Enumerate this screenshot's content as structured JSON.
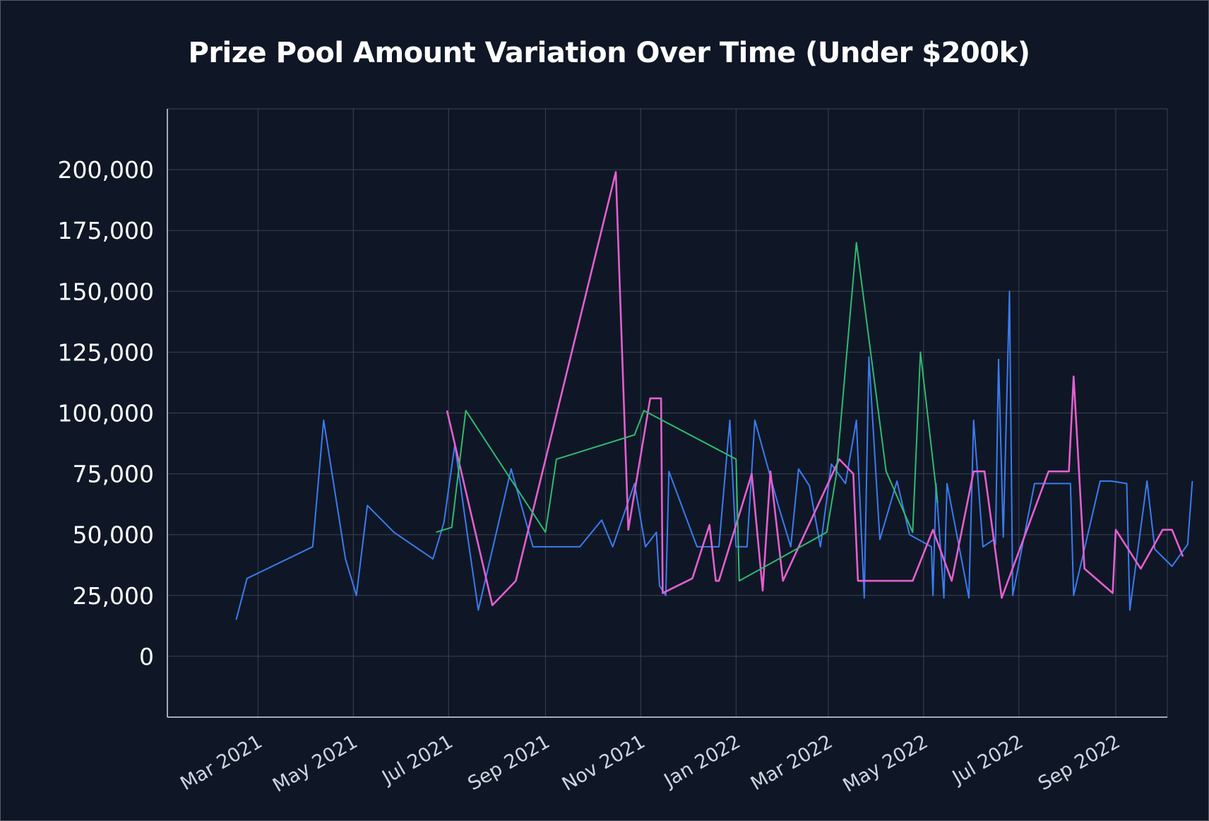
{
  "chart_data": {
    "type": "line",
    "title": "Prize Pool Amount Variation Over Time (Under $200k)",
    "xlabel": "",
    "ylabel": "",
    "x_range": [
      "2021-01-02",
      "2022-10-04"
    ],
    "ylim": [
      -25000,
      225000
    ],
    "y_ticks": [
      0,
      25000,
      50000,
      75000,
      100000,
      125000,
      150000,
      175000,
      200000
    ],
    "y_tick_labels": [
      "0",
      "25,000",
      "50,000",
      "75,000",
      "100,000",
      "125,000",
      "150,000",
      "175,000",
      "200,000"
    ],
    "x_ticks": [
      "2021-03-01",
      "2021-05-01",
      "2021-07-01",
      "2021-09-01",
      "2021-11-01",
      "2022-01-01",
      "2022-03-01",
      "2022-05-01",
      "2022-07-01",
      "2022-09-01"
    ],
    "x_tick_labels": [
      "Mar 2021",
      "May 2021",
      "Jul 2021",
      "Sep 2021",
      "Nov 2021",
      "Jan 2022",
      "Mar 2022",
      "May 2022",
      "Jul 2022",
      "Sep 2022"
    ],
    "grid": true,
    "legend": "none",
    "series": [
      {
        "color": "#3b7bf0",
        "points": [
          [
            "2021-02-15",
            15000
          ],
          [
            "2021-02-22",
            32000
          ],
          [
            "2021-04-05",
            45000
          ],
          [
            "2021-04-12",
            97000
          ],
          [
            "2021-04-26",
            40000
          ],
          [
            "2021-05-03",
            25000
          ],
          [
            "2021-05-10",
            62000
          ],
          [
            "2021-05-27",
            51000
          ],
          [
            "2021-06-21",
            40000
          ],
          [
            "2021-06-28",
            55000
          ],
          [
            "2021-07-05",
            87000
          ],
          [
            "2021-07-13",
            50000
          ],
          [
            "2021-07-20",
            19000
          ],
          [
            "2021-08-10",
            77000
          ],
          [
            "2021-08-24",
            45000
          ],
          [
            "2021-09-08",
            45000
          ],
          [
            "2021-09-23",
            45000
          ],
          [
            "2021-10-07",
            56000
          ],
          [
            "2021-10-14",
            45000
          ],
          [
            "2021-10-28",
            71000
          ],
          [
            "2021-11-04",
            45000
          ],
          [
            "2021-11-11",
            51000
          ],
          [
            "2021-11-13",
            29000
          ],
          [
            "2021-11-17",
            25000
          ],
          [
            "2021-11-19",
            76000
          ],
          [
            "2021-12-07",
            45000
          ],
          [
            "2021-12-21",
            45000
          ],
          [
            "2021-12-28",
            97000
          ],
          [
            "2022-01-01",
            45000
          ],
          [
            "2022-01-08",
            45000
          ],
          [
            "2022-01-13",
            97000
          ],
          [
            "2022-01-28",
            62000
          ],
          [
            "2022-02-05",
            45000
          ],
          [
            "2022-02-10",
            77000
          ],
          [
            "2022-02-17",
            70000
          ],
          [
            "2022-02-24",
            45000
          ],
          [
            "2022-03-03",
            79000
          ],
          [
            "2022-03-12",
            71000
          ],
          [
            "2022-03-19",
            97000
          ],
          [
            "2022-03-24",
            24000
          ],
          [
            "2022-03-27",
            123000
          ],
          [
            "2022-04-03",
            48000
          ],
          [
            "2022-04-14",
            72000
          ],
          [
            "2022-04-22",
            50000
          ],
          [
            "2022-05-06",
            45000
          ],
          [
            "2022-05-07",
            25000
          ],
          [
            "2022-05-09",
            71000
          ],
          [
            "2022-05-14",
            24000
          ],
          [
            "2022-05-16",
            71000
          ],
          [
            "2022-05-30",
            24000
          ],
          [
            "2022-06-02",
            97000
          ],
          [
            "2022-06-08",
            45000
          ],
          [
            "2022-06-15",
            48000
          ],
          [
            "2022-06-16",
            46000
          ],
          [
            "2022-06-18",
            122000
          ],
          [
            "2022-06-21",
            49000
          ],
          [
            "2022-06-25",
            150000
          ],
          [
            "2022-06-27",
            25000
          ],
          [
            "2022-07-11",
            71000
          ],
          [
            "2022-08-03",
            71000
          ],
          [
            "2022-08-05",
            25000
          ],
          [
            "2022-08-22",
            72000
          ],
          [
            "2022-08-29",
            72000
          ],
          [
            "2022-09-08",
            71000
          ],
          [
            "2022-09-10",
            19000
          ],
          [
            "2022-09-21",
            72000
          ],
          [
            "2022-09-26",
            44000
          ],
          [
            "2022-10-07",
            37000
          ],
          [
            "2022-10-17",
            46000
          ],
          [
            "2022-10-20",
            72000
          ]
        ]
      },
      {
        "color": "#e45fd0",
        "points": [
          [
            "2021-06-30",
            101000
          ],
          [
            "2021-07-29",
            21000
          ],
          [
            "2021-08-13",
            31000
          ],
          [
            "2021-10-16",
            199000
          ],
          [
            "2021-10-24",
            52000
          ],
          [
            "2021-11-07",
            106000
          ],
          [
            "2021-11-14",
            106000
          ],
          [
            "2021-11-15",
            26000
          ],
          [
            "2021-12-04",
            32000
          ],
          [
            "2021-12-15",
            54000
          ],
          [
            "2021-12-19",
            31000
          ],
          [
            "2021-12-21",
            31000
          ],
          [
            "2022-01-11",
            75000
          ],
          [
            "2022-01-18",
            27000
          ],
          [
            "2022-01-23",
            76000
          ],
          [
            "2022-01-31",
            31000
          ],
          [
            "2022-03-08",
            81000
          ],
          [
            "2022-03-17",
            75000
          ],
          [
            "2022-03-20",
            31000
          ],
          [
            "2022-04-24",
            31000
          ],
          [
            "2022-05-07",
            52000
          ],
          [
            "2022-05-19",
            31000
          ],
          [
            "2022-06-02",
            76000
          ],
          [
            "2022-06-09",
            76000
          ],
          [
            "2022-06-20",
            24000
          ],
          [
            "2022-07-20",
            76000
          ],
          [
            "2022-08-02",
            76000
          ],
          [
            "2022-08-05",
            115000
          ],
          [
            "2022-08-12",
            36000
          ],
          [
            "2022-08-30",
            26000
          ],
          [
            "2022-09-01",
            52000
          ],
          [
            "2022-09-17",
            36000
          ],
          [
            "2022-10-01",
            52000
          ],
          [
            "2022-10-07",
            52000
          ],
          [
            "2022-10-14",
            41000
          ]
        ]
      },
      {
        "color": "#2fbb70",
        "points": [
          [
            "2021-06-23",
            51000
          ],
          [
            "2021-07-03",
            53000
          ],
          [
            "2021-07-12",
            101000
          ],
          [
            "2021-09-01",
            51000
          ],
          [
            "2021-09-08",
            81000
          ],
          [
            "2021-10-28",
            91000
          ],
          [
            "2021-11-03",
            101000
          ],
          [
            "2022-01-01",
            81000
          ],
          [
            "2022-01-03",
            31000
          ],
          [
            "2022-02-28",
            51000
          ],
          [
            "2022-03-06",
            74000
          ],
          [
            "2022-03-19",
            170000
          ],
          [
            "2022-04-07",
            76000
          ],
          [
            "2022-04-24",
            51000
          ],
          [
            "2022-04-29",
            125000
          ],
          [
            "2022-05-10",
            63000
          ]
        ]
      }
    ]
  }
}
